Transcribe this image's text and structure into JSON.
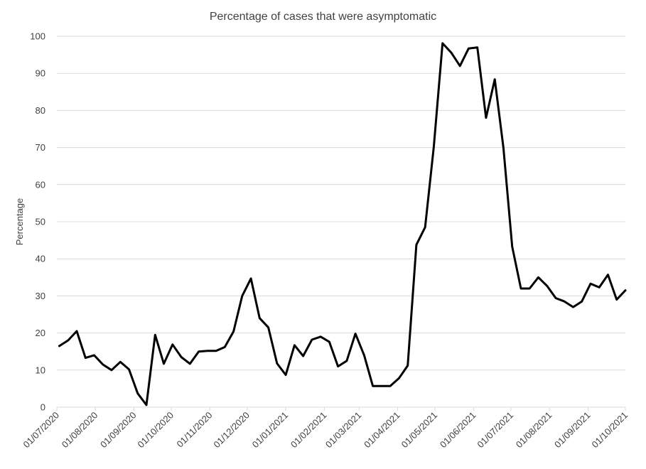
{
  "chart_data": {
    "type": "line",
    "title": "Percentage of cases that were asymptomatic",
    "xlabel": "",
    "ylabel": "Percentage",
    "ylim": [
      0,
      100
    ],
    "yticks": [
      0,
      10,
      20,
      30,
      40,
      50,
      60,
      70,
      80,
      90,
      100
    ],
    "xlim": [
      "2020-07-01",
      "2021-10-01"
    ],
    "xtick_labels": [
      "01/07/2020",
      "01/08/2020",
      "01/09/2020",
      "01/10/2020",
      "01/11/2020",
      "01/12/2020",
      "01/01/2021",
      "01/02/2021",
      "01/03/2021",
      "01/04/2021",
      "01/05/2021",
      "01/06/2021",
      "01/07/2021",
      "01/08/2021",
      "01/09/2021",
      "01/10/2021"
    ],
    "grid": true,
    "legend": "none",
    "series": [
      {
        "color": "#000000",
        "x": [
          "2020-07-03",
          "2020-07-10",
          "2020-07-17",
          "2020-07-24",
          "2020-07-31",
          "2020-08-07",
          "2020-08-14",
          "2020-08-21",
          "2020-08-28",
          "2020-09-04",
          "2020-09-11",
          "2020-09-18",
          "2020-09-25",
          "2020-10-02",
          "2020-10-09",
          "2020-10-16",
          "2020-10-23",
          "2020-10-30",
          "2020-11-06",
          "2020-11-13",
          "2020-11-20",
          "2020-11-27",
          "2020-12-04",
          "2020-12-11",
          "2020-12-18",
          "2020-12-25",
          "2021-01-01",
          "2021-01-08",
          "2021-01-15",
          "2021-01-22",
          "2021-01-29",
          "2021-02-05",
          "2021-02-12",
          "2021-02-19",
          "2021-02-26",
          "2021-03-05",
          "2021-03-12",
          "2021-03-19",
          "2021-03-26",
          "2021-04-02",
          "2021-04-09",
          "2021-04-16",
          "2021-04-23",
          "2021-04-30",
          "2021-05-07",
          "2021-05-14",
          "2021-05-21",
          "2021-05-28",
          "2021-06-04",
          "2021-06-11",
          "2021-06-18",
          "2021-06-25",
          "2021-07-02",
          "2021-07-09",
          "2021-07-16",
          "2021-07-23",
          "2021-07-30",
          "2021-08-06",
          "2021-08-13",
          "2021-08-20",
          "2021-08-27",
          "2021-09-03",
          "2021-09-10",
          "2021-09-17",
          "2021-09-24",
          "2021-10-01"
        ],
        "y": [
          16.5,
          18,
          20.5,
          13.3,
          14,
          11.5,
          10,
          12.2,
          10.2,
          3.7,
          0.6,
          19.5,
          11.7,
          16.9,
          13.5,
          11.7,
          15,
          15.2,
          15.2,
          16.2,
          20.4,
          30,
          34.7,
          24,
          21.5,
          11.8,
          8.7,
          16.7,
          13.8,
          18.2,
          19,
          17.6,
          11,
          12.5,
          19.8,
          14,
          5.7,
          5.7,
          5.7,
          7.8,
          11.2,
          43.8,
          48.5,
          70.2,
          98.1,
          95.6,
          92,
          96.7,
          97,
          78,
          88.4,
          69.9,
          43.3,
          32,
          32,
          35,
          32.7,
          29.4,
          28.5,
          27,
          28.5,
          33.3,
          32.3,
          35.7,
          29,
          31.5
        ]
      }
    ]
  }
}
